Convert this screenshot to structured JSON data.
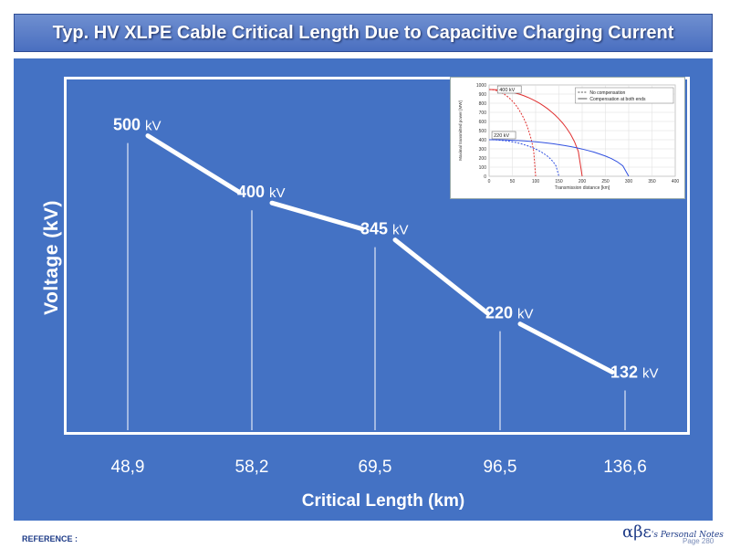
{
  "header": {
    "title": "Typ. HV XLPE Cable Critical Length Due to Capacitive Charging Current"
  },
  "chart_data": {
    "type": "line",
    "title": "Typ. HV XLPE Cable Critical Length Due to Capacitive Charging Current",
    "xlabel": "Critical Length (km)",
    "ylabel": "Voltage (kV)",
    "categories": [
      "48,9",
      "58,2",
      "69,5",
      "96,5",
      "136,6"
    ],
    "x": [
      48.9,
      58.2,
      69.5,
      96.5,
      136.6
    ],
    "values": [
      500,
      400,
      345,
      220,
      132
    ],
    "point_labels": [
      {
        "value": "500",
        "unit": "kV"
      },
      {
        "value": "400",
        "unit": "kV"
      },
      {
        "value": "345",
        "unit": "kV"
      },
      {
        "value": "220",
        "unit": "kV"
      },
      {
        "value": "132",
        "unit": "kV"
      }
    ],
    "colors": {
      "panel": "#4472c4",
      "line": "#ffffff"
    }
  },
  "inset": {
    "type": "line",
    "xlabel": "Transmission distance [km]",
    "ylabel": "Maximal transmitted power [MW]",
    "x_ticks": [
      "0",
      "50",
      "100",
      "150",
      "200",
      "250",
      "300",
      "350",
      "400"
    ],
    "y_ticks": [
      "0",
      "100",
      "200",
      "300",
      "400",
      "500",
      "600",
      "700",
      "800",
      "900",
      "1000"
    ],
    "xlim": [
      0,
      400
    ],
    "ylim": [
      0,
      1000
    ],
    "legend": [
      "No compensation",
      "Compensation at both ends"
    ],
    "box_labels": [
      "400 kV",
      "220 kV"
    ],
    "colors": {
      "red": "#e03030",
      "blue": "#3050e0"
    }
  },
  "footer": {
    "reference": "REFERENCE :",
    "brand_greek": "αβε",
    "brand_text": "'s Personal Notes",
    "page": "Page 280"
  }
}
